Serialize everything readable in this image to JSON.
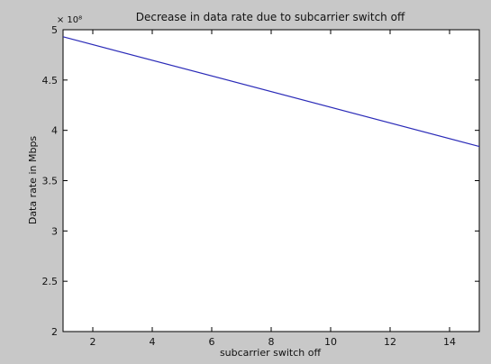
{
  "chart_data": {
    "type": "line",
    "title": "Decrease in data rate due to subcarrier switch off",
    "xlabel": "subcarrier switch off",
    "ylabel": "Data rate in Mbps",
    "y_multiplier_label": "× 10⁸",
    "xlim": [
      1,
      15
    ],
    "ylim": [
      2,
      5
    ],
    "x_ticks": [
      2,
      4,
      6,
      8,
      10,
      12,
      14
    ],
    "y_ticks": [
      2,
      2.5,
      3,
      3.5,
      4,
      4.5,
      5
    ],
    "y_tick_labels": [
      "2",
      "2.5",
      "3",
      "3.5",
      "4",
      "4.5",
      "5"
    ],
    "series": [
      {
        "x": [
          1,
          15
        ],
        "y": [
          4.93,
          3.84
        ],
        "color": "#2b2bb8"
      }
    ],
    "grid": false,
    "colors": {
      "figure_background": "#c8c8c8",
      "axes_background": "#ffffff",
      "axes_color": "#000000"
    }
  }
}
